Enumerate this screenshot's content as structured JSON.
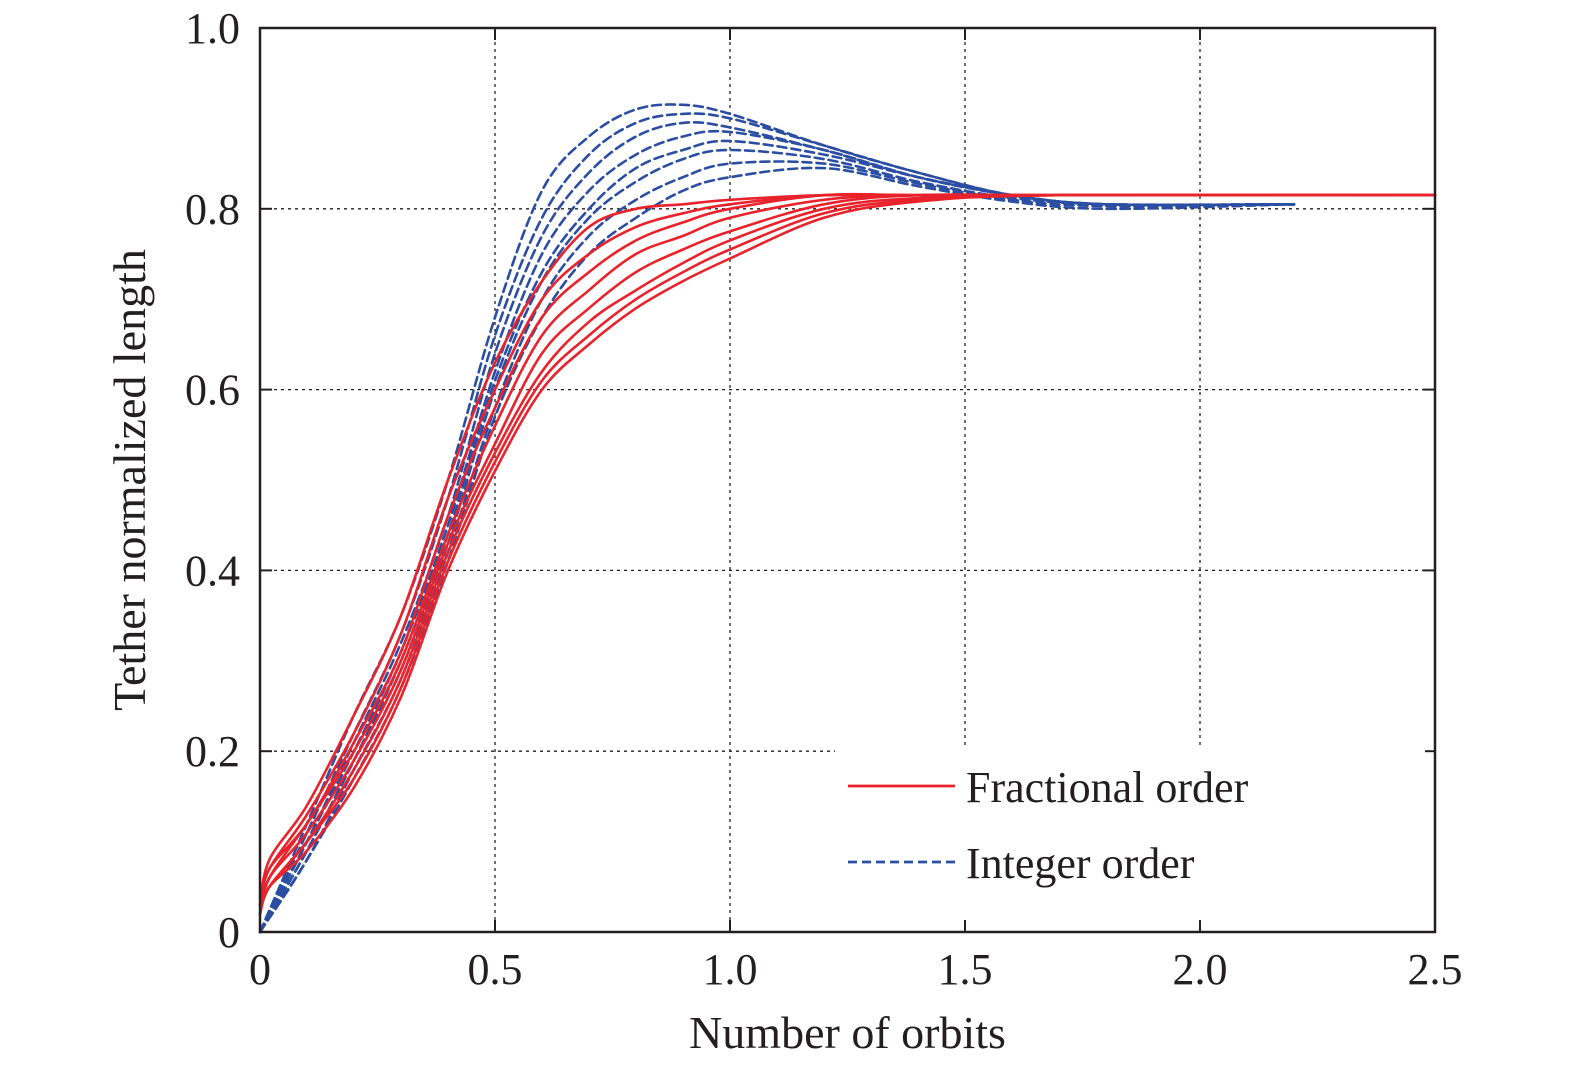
{
  "chart_data": {
    "type": "line",
    "xlabel": "Number of orbits",
    "ylabel": "Tether normalized length",
    "xlim": [
      0,
      2.5
    ],
    "ylim": [
      0,
      1.0
    ],
    "grid": true,
    "legend_position": "bottom-right",
    "x_ticks": [
      0,
      0.5,
      1.0,
      1.5,
      2.0,
      2.5
    ],
    "y_ticks": [
      0,
      0.2,
      0.4,
      0.6,
      0.8,
      1.0
    ],
    "x_tick_labels": [
      "0",
      "0.5",
      "1.0",
      "1.5",
      "2.0",
      "2.5"
    ],
    "y_tick_labels": [
      "0",
      "0.2",
      "0.4",
      "0.6",
      "0.8",
      "1.0"
    ],
    "legend": [
      {
        "label": "Fractional order",
        "color": "#e8232b",
        "style": "solid"
      },
      {
        "label": "Integer order",
        "color": "#2b4ea2",
        "style": "dashed"
      }
    ],
    "series": [
      {
        "group": "Fractional order",
        "color": "#e8232b",
        "style": "solid",
        "x": [
          0,
          0.02,
          0.1,
          0.2,
          0.3,
          0.4,
          0.5,
          0.6,
          0.7,
          0.8,
          0.9,
          1.0,
          1.2,
          1.4,
          1.7,
          2.5
        ],
        "y": [
          0.03,
          0.08,
          0.14,
          0.24,
          0.35,
          0.5,
          0.63,
          0.72,
          0.78,
          0.8,
          0.805,
          0.81,
          0.815,
          0.815,
          0.815,
          0.815
        ]
      },
      {
        "group": "Fractional order",
        "color": "#e8232b",
        "style": "solid",
        "x": [
          0,
          0.02,
          0.1,
          0.2,
          0.3,
          0.4,
          0.5,
          0.6,
          0.7,
          0.8,
          0.9,
          1.0,
          1.2,
          1.4,
          1.7,
          2.5
        ],
        "y": [
          0.03,
          0.07,
          0.13,
          0.22,
          0.33,
          0.48,
          0.6,
          0.7,
          0.75,
          0.78,
          0.795,
          0.805,
          0.815,
          0.815,
          0.815,
          0.815
        ]
      },
      {
        "group": "Fractional order",
        "color": "#e8232b",
        "style": "solid",
        "x": [
          0,
          0.02,
          0.1,
          0.2,
          0.3,
          0.4,
          0.5,
          0.6,
          0.7,
          0.8,
          0.9,
          1.0,
          1.2,
          1.4,
          1.7,
          2.5
        ],
        "y": [
          0.03,
          0.07,
          0.12,
          0.21,
          0.31,
          0.46,
          0.58,
          0.68,
          0.73,
          0.765,
          0.785,
          0.8,
          0.815,
          0.815,
          0.815,
          0.815
        ]
      },
      {
        "group": "Fractional order",
        "color": "#e8232b",
        "style": "solid",
        "x": [
          0,
          0.02,
          0.1,
          0.2,
          0.3,
          0.4,
          0.5,
          0.6,
          0.7,
          0.8,
          0.9,
          1.0,
          1.2,
          1.4,
          1.7,
          2.5
        ],
        "y": [
          0.02,
          0.06,
          0.12,
          0.2,
          0.3,
          0.44,
          0.56,
          0.66,
          0.71,
          0.75,
          0.77,
          0.79,
          0.81,
          0.815,
          0.815,
          0.815
        ]
      },
      {
        "group": "Fractional order",
        "color": "#e8232b",
        "style": "solid",
        "x": [
          0,
          0.02,
          0.1,
          0.2,
          0.3,
          0.4,
          0.5,
          0.6,
          0.7,
          0.8,
          0.9,
          1.0,
          1.2,
          1.4,
          1.7,
          2.5
        ],
        "y": [
          0.02,
          0.06,
          0.11,
          0.19,
          0.29,
          0.43,
          0.54,
          0.64,
          0.69,
          0.73,
          0.755,
          0.775,
          0.805,
          0.815,
          0.815,
          0.815
        ]
      },
      {
        "group": "Fractional order",
        "color": "#e8232b",
        "style": "solid",
        "x": [
          0,
          0.02,
          0.1,
          0.2,
          0.3,
          0.4,
          0.5,
          0.6,
          0.7,
          0.8,
          0.9,
          1.0,
          1.2,
          1.4,
          1.7,
          2.5
        ],
        "y": [
          0.02,
          0.05,
          0.1,
          0.18,
          0.28,
          0.42,
          0.53,
          0.62,
          0.675,
          0.71,
          0.74,
          0.765,
          0.8,
          0.812,
          0.815,
          0.815
        ]
      },
      {
        "group": "Fractional order",
        "color": "#e8232b",
        "style": "solid",
        "x": [
          0,
          0.02,
          0.1,
          0.2,
          0.3,
          0.4,
          0.5,
          0.6,
          0.7,
          0.8,
          0.9,
          1.0,
          1.2,
          1.4,
          1.7,
          2.5
        ],
        "y": [
          0.02,
          0.05,
          0.1,
          0.17,
          0.27,
          0.41,
          0.52,
          0.61,
          0.66,
          0.7,
          0.73,
          0.755,
          0.795,
          0.81,
          0.815,
          0.815
        ]
      },
      {
        "group": "Fractional order",
        "color": "#e8232b",
        "style": "solid",
        "x": [
          0,
          0.02,
          0.1,
          0.2,
          0.3,
          0.4,
          0.5,
          0.6,
          0.7,
          0.8,
          0.9,
          1.0,
          1.2,
          1.4,
          1.7,
          2.5
        ],
        "y": [
          0.02,
          0.05,
          0.09,
          0.16,
          0.26,
          0.4,
          0.51,
          0.6,
          0.65,
          0.69,
          0.72,
          0.745,
          0.79,
          0.808,
          0.815,
          0.815
        ]
      },
      {
        "group": "Integer order",
        "color": "#2b4ea2",
        "style": "dashed",
        "x": [
          0,
          0.1,
          0.2,
          0.3,
          0.4,
          0.5,
          0.6,
          0.7,
          0.8,
          0.9,
          1.0,
          1.2,
          1.4,
          1.6,
          1.8,
          2.2
        ],
        "y": [
          0,
          0.12,
          0.24,
          0.35,
          0.5,
          0.68,
          0.82,
          0.88,
          0.91,
          0.915,
          0.905,
          0.87,
          0.84,
          0.815,
          0.805,
          0.805
        ]
      },
      {
        "group": "Integer order",
        "color": "#2b4ea2",
        "style": "dashed",
        "x": [
          0,
          0.1,
          0.2,
          0.3,
          0.4,
          0.5,
          0.6,
          0.7,
          0.8,
          0.9,
          1.0,
          1.2,
          1.4,
          1.6,
          1.8,
          2.2
        ],
        "y": [
          0,
          0.11,
          0.22,
          0.33,
          0.48,
          0.66,
          0.79,
          0.86,
          0.895,
          0.905,
          0.9,
          0.87,
          0.84,
          0.815,
          0.805,
          0.805
        ]
      },
      {
        "group": "Integer order",
        "color": "#2b4ea2",
        "style": "dashed",
        "x": [
          0,
          0.1,
          0.2,
          0.3,
          0.4,
          0.5,
          0.6,
          0.7,
          0.8,
          0.9,
          1.0,
          1.2,
          1.4,
          1.6,
          1.8,
          2.2
        ],
        "y": [
          0,
          0.1,
          0.21,
          0.32,
          0.46,
          0.64,
          0.77,
          0.84,
          0.88,
          0.895,
          0.89,
          0.865,
          0.835,
          0.815,
          0.805,
          0.805
        ]
      },
      {
        "group": "Integer order",
        "color": "#2b4ea2",
        "style": "dashed",
        "x": [
          0,
          0.1,
          0.2,
          0.3,
          0.4,
          0.5,
          0.6,
          0.7,
          0.8,
          0.9,
          1.0,
          1.2,
          1.4,
          1.6,
          1.8,
          2.2
        ],
        "y": [
          0,
          0.1,
          0.2,
          0.31,
          0.45,
          0.62,
          0.75,
          0.82,
          0.86,
          0.88,
          0.885,
          0.865,
          0.835,
          0.815,
          0.805,
          0.805
        ]
      },
      {
        "group": "Integer order",
        "color": "#2b4ea2",
        "style": "dashed",
        "x": [
          0,
          0.1,
          0.2,
          0.3,
          0.4,
          0.5,
          0.6,
          0.7,
          0.8,
          0.9,
          1.0,
          1.2,
          1.4,
          1.6,
          1.8,
          2.2
        ],
        "y": [
          0,
          0.09,
          0.19,
          0.3,
          0.44,
          0.61,
          0.73,
          0.8,
          0.845,
          0.865,
          0.875,
          0.86,
          0.835,
          0.815,
          0.805,
          0.805
        ]
      },
      {
        "group": "Integer order",
        "color": "#2b4ea2",
        "style": "dashed",
        "x": [
          0,
          0.1,
          0.2,
          0.3,
          0.4,
          0.5,
          0.6,
          0.7,
          0.8,
          0.9,
          1.0,
          1.2,
          1.4,
          1.6,
          1.8,
          2.2
        ],
        "y": [
          0,
          0.09,
          0.19,
          0.29,
          0.43,
          0.6,
          0.72,
          0.79,
          0.83,
          0.855,
          0.865,
          0.855,
          0.83,
          0.812,
          0.805,
          0.805
        ]
      },
      {
        "group": "Integer order",
        "color": "#2b4ea2",
        "style": "dashed",
        "x": [
          0,
          0.1,
          0.2,
          0.3,
          0.4,
          0.5,
          0.6,
          0.7,
          0.8,
          0.9,
          1.0,
          1.2,
          1.4,
          1.6,
          1.8,
          2.2
        ],
        "y": [
          0,
          0.08,
          0.18,
          0.28,
          0.42,
          0.58,
          0.7,
          0.77,
          0.81,
          0.835,
          0.85,
          0.85,
          0.828,
          0.81,
          0.803,
          0.805
        ]
      },
      {
        "group": "Integer order",
        "color": "#2b4ea2",
        "style": "dashed",
        "x": [
          0,
          0.1,
          0.2,
          0.3,
          0.4,
          0.5,
          0.6,
          0.7,
          0.8,
          0.9,
          1.0,
          1.2,
          1.4,
          1.6,
          1.8,
          2.2
        ],
        "y": [
          0,
          0.08,
          0.17,
          0.27,
          0.41,
          0.57,
          0.68,
          0.75,
          0.79,
          0.82,
          0.835,
          0.845,
          0.825,
          0.808,
          0.8,
          0.805
        ]
      }
    ]
  }
}
